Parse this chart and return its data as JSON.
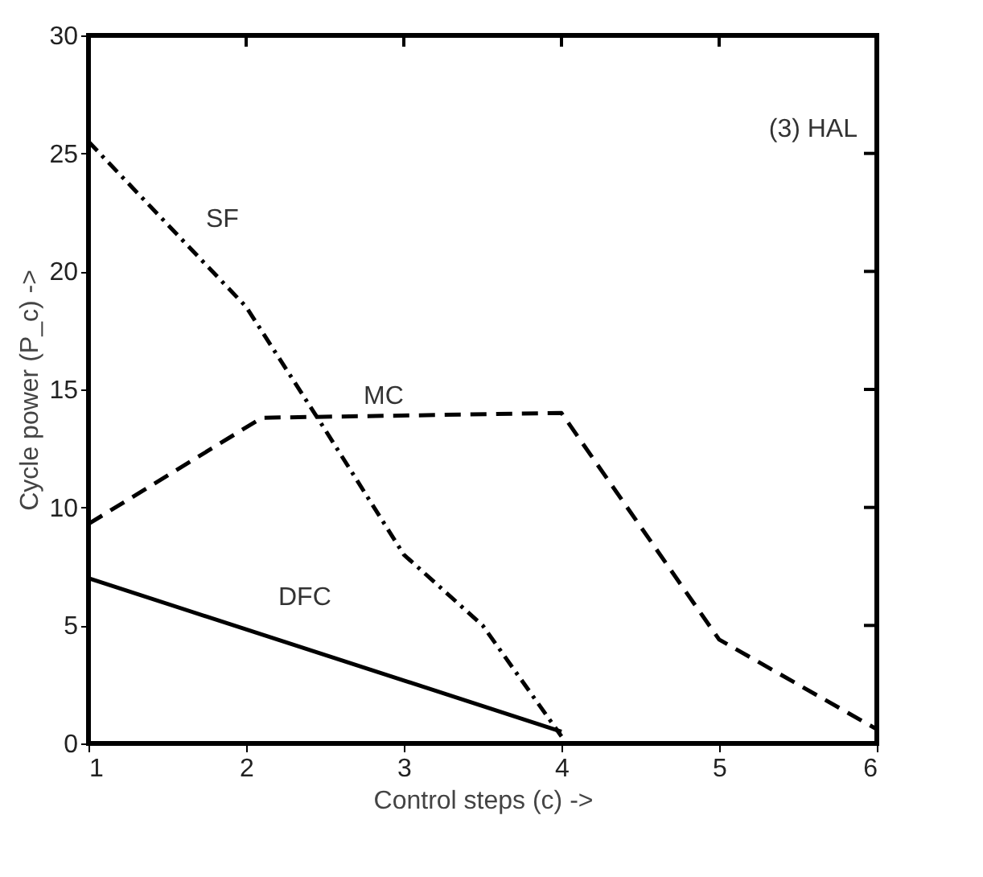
{
  "chart_data": {
    "type": "line",
    "xlabel": "Control steps (c) ->",
    "ylabel": "Cycle power (P_c) ->",
    "xlim": [
      1,
      6
    ],
    "xticks": [
      1,
      2,
      3,
      4,
      5,
      6
    ],
    "ylim": [
      0,
      30
    ],
    "yticks": [
      0,
      5,
      10,
      15,
      20,
      25,
      30
    ],
    "grid": false,
    "legend": false,
    "marker": "none",
    "series": [
      {
        "name": "SF",
        "color": "#000000",
        "line_style": "dashdot",
        "x": [
          1,
          1.5,
          2,
          2.5,
          3,
          3.5,
          4
        ],
        "values": [
          25.5,
          22,
          18.5,
          13.3,
          8,
          5,
          0.3
        ]
      },
      {
        "name": "MC",
        "color": "#000000",
        "line_style": "dashed",
        "x": [
          1,
          2.1,
          4,
          5,
          6
        ],
        "values": [
          9.3,
          13.8,
          14,
          4.4,
          0.6
        ]
      },
      {
        "name": "DFC",
        "color": "#000000",
        "line_style": "solid",
        "x": [
          1,
          4
        ],
        "values": [
          7,
          0.5
        ]
      }
    ],
    "annotations": [
      "(3) HAL"
    ]
  }
}
